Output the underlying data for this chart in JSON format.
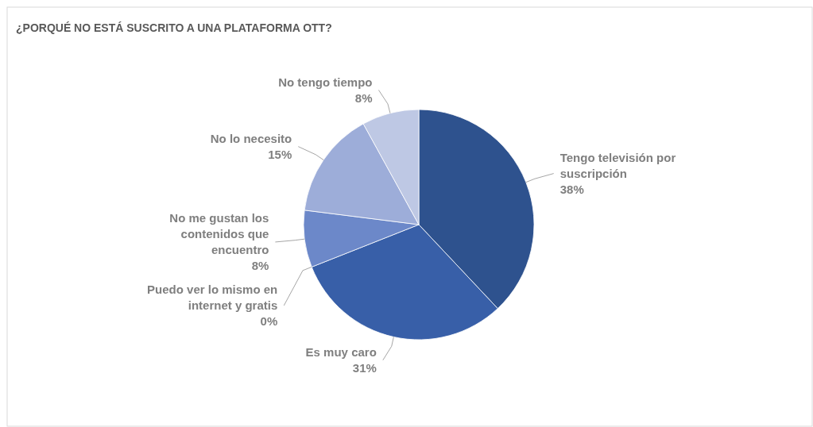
{
  "chart_data": {
    "type": "pie",
    "title": "¿PORQUÉ NO ESTÁ SUSCRITO A UNA PLATAFORMA OTT?",
    "categories": [
      "Tengo televisión por suscripción",
      "Es muy caro",
      "Puedo ver lo mismo en internet y gratis",
      "No me gustan los contenidos que encuentro",
      "No lo necesito",
      "No tengo tiempo"
    ],
    "values": [
      38,
      31,
      0,
      8,
      15,
      8
    ],
    "value_labels": [
      "38%",
      "31%",
      "0%",
      "8%",
      "15%",
      "8%"
    ],
    "colors": [
      "#2e528e",
      "#385fa8",
      "#3d67b5",
      "#6c88c9",
      "#9dadd9",
      "#bec8e4"
    ]
  }
}
